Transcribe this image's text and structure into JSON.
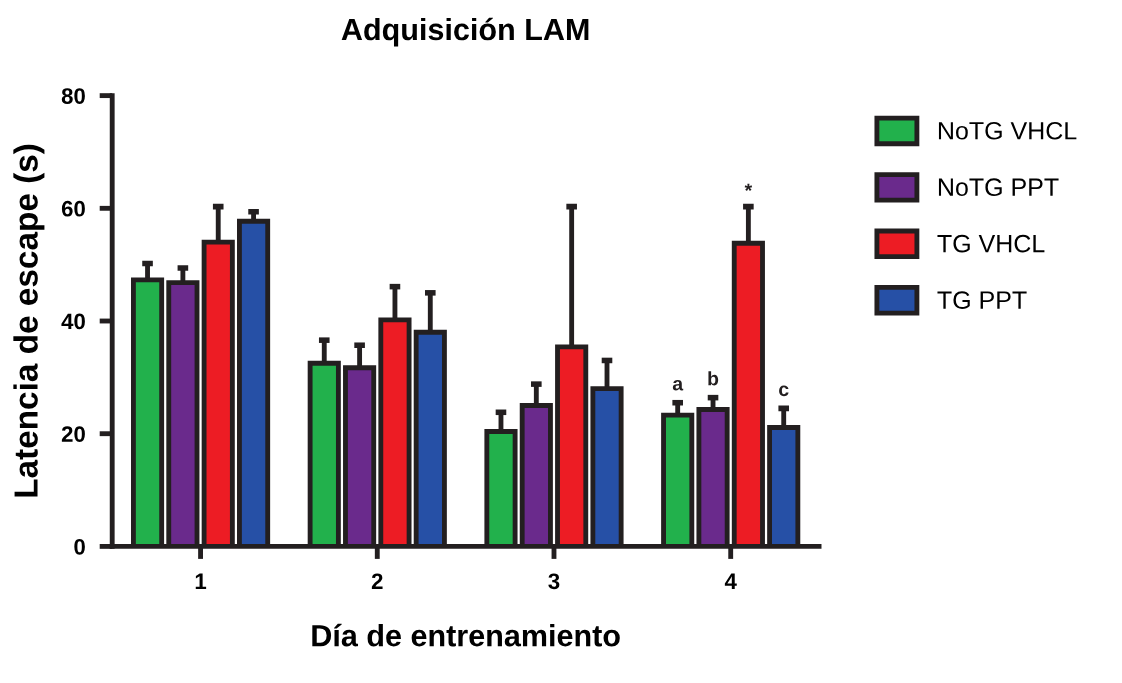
{
  "chart_data": {
    "type": "bar",
    "title": "Adquisición LAM",
    "xlabel": "Día de entrenamiento",
    "ylabel": "Latencia de escape (s)",
    "categories": [
      "1",
      "2",
      "3",
      "4"
    ],
    "series": [
      {
        "name": "NoTG VHCL",
        "color": "#22b14c",
        "values": [
          47.3,
          32.5,
          20.4,
          23.3
        ],
        "errors": [
          [
            47.3,
            50.2
          ],
          [
            32.5,
            36.6
          ],
          [
            20.4,
            23.8
          ],
          [
            23.3,
            25.5
          ]
        ]
      },
      {
        "name": "NoTG PPT",
        "color": "#6a2a8c",
        "values": [
          46.8,
          31.7,
          25.0,
          24.3
        ],
        "errors": [
          [
            46.8,
            49.4
          ],
          [
            31.7,
            35.7
          ],
          [
            25.0,
            28.8
          ],
          [
            24.3,
            26.4
          ]
        ]
      },
      {
        "name": "TG VHCL",
        "color": "#ed1c24",
        "values": [
          54.0,
          40.2,
          35.4,
          53.8
        ],
        "errors": [
          [
            54.0,
            60.3
          ],
          [
            40.2,
            46.1
          ],
          [
            35.4,
            60.3
          ],
          [
            53.8,
            60.3
          ]
        ]
      },
      {
        "name": "TG PPT",
        "color": "#2650a6",
        "values": [
          57.7,
          38.0,
          28.0,
          21.1
        ],
        "errors": [
          [
            57.7,
            59.4
          ],
          [
            38.0,
            45.0
          ],
          [
            28.0,
            33.0
          ],
          [
            21.1,
            24.5
          ]
        ]
      }
    ],
    "annotations": [
      {
        "text": "a",
        "x": "4",
        "y": 25.5
      },
      {
        "text": "b",
        "x": "4",
        "y": 26.4
      },
      "*",
      {
        "text": "c",
        "x": "4",
        "y": 24.5
      }
    ],
    "ylim": [
      0,
      80
    ],
    "yticks": [
      0,
      20,
      40,
      60,
      80
    ],
    "legend": "top right",
    "grid": false
  }
}
